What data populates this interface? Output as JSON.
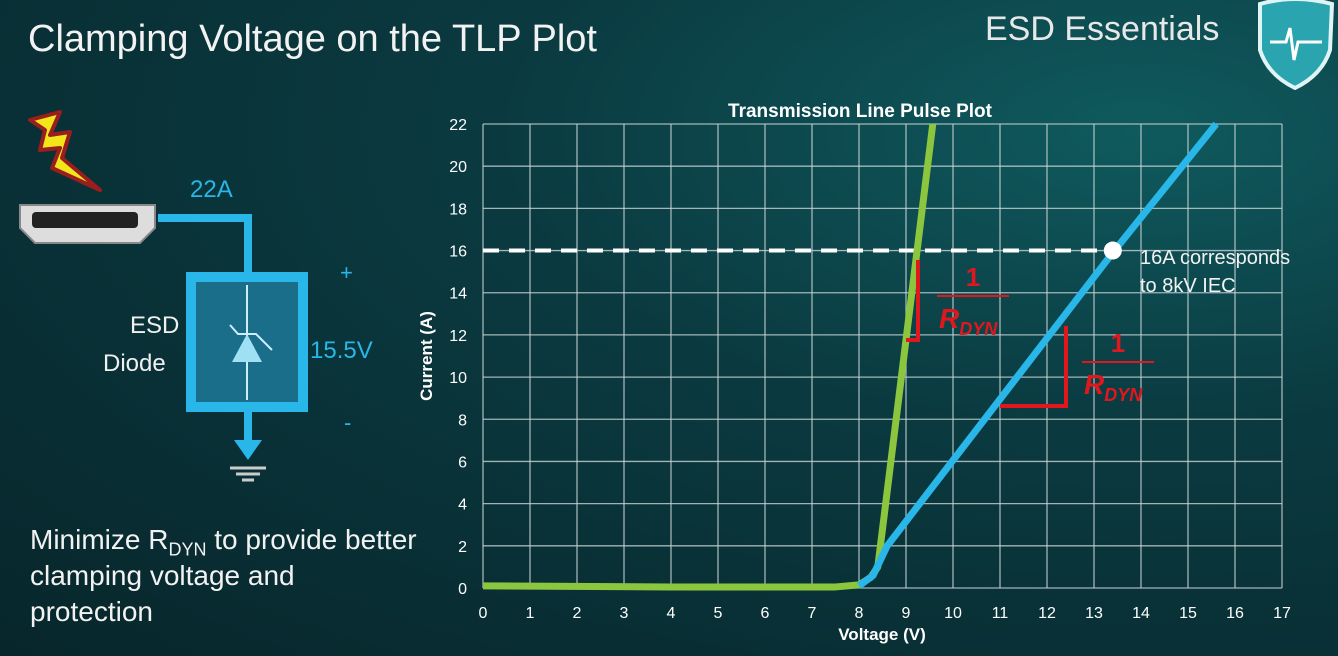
{
  "slide": {
    "title": "Clamping Voltage on the TLP Plot",
    "brand": "ESD Essentials",
    "caption_pre": "Minimize R",
    "caption_sub": "DYN",
    "caption_post": " to provide better clamping voltage and protection"
  },
  "circuit": {
    "current_label": "22A",
    "device_label_1": "ESD",
    "device_label_2": "Diode",
    "voltage_label": "15.5V",
    "plus": "+",
    "minus": "-"
  },
  "colors": {
    "accent": "#29b6e8",
    "green": "#8cc63f",
    "annotation": "#e0181e"
  },
  "chart_data": {
    "type": "line",
    "title": "Transmission Line Pulse Plot",
    "xlabel": "Voltage (V)",
    "ylabel": "Current (A)",
    "xlim": [
      0,
      17
    ],
    "ylim": [
      0,
      22
    ],
    "xticks": [
      0,
      1,
      2,
      3,
      4,
      5,
      6,
      7,
      8,
      9,
      10,
      11,
      12,
      13,
      14,
      15,
      16,
      17
    ],
    "yticks": [
      0,
      2,
      4,
      6,
      8,
      10,
      12,
      14,
      16,
      18,
      20,
      22
    ],
    "grid": true,
    "series": [
      {
        "color": "#8cc63f",
        "x": [
          0,
          4,
          7.5,
          8.0,
          8.25,
          8.4,
          9.57
        ],
        "y": [
          0.1,
          0.05,
          0.05,
          0.15,
          0.5,
          1.0,
          22
        ]
      },
      {
        "color": "#29b6e8",
        "x": [
          8.0,
          8.3,
          8.6,
          13.4,
          15.6
        ],
        "y": [
          0.1,
          0.6,
          2.0,
          15.9,
          22
        ]
      }
    ],
    "reference_line": {
      "y": 16,
      "style": "dashed"
    },
    "marker": {
      "x": 13.4,
      "y": 16
    },
    "annotations": {
      "marker_text_1": "16A corresponds",
      "marker_text_2": "to 8kV IEC",
      "slope_numerator": "1",
      "slope_denominator": "R",
      "slope_denominator_sub": "DYN"
    }
  }
}
